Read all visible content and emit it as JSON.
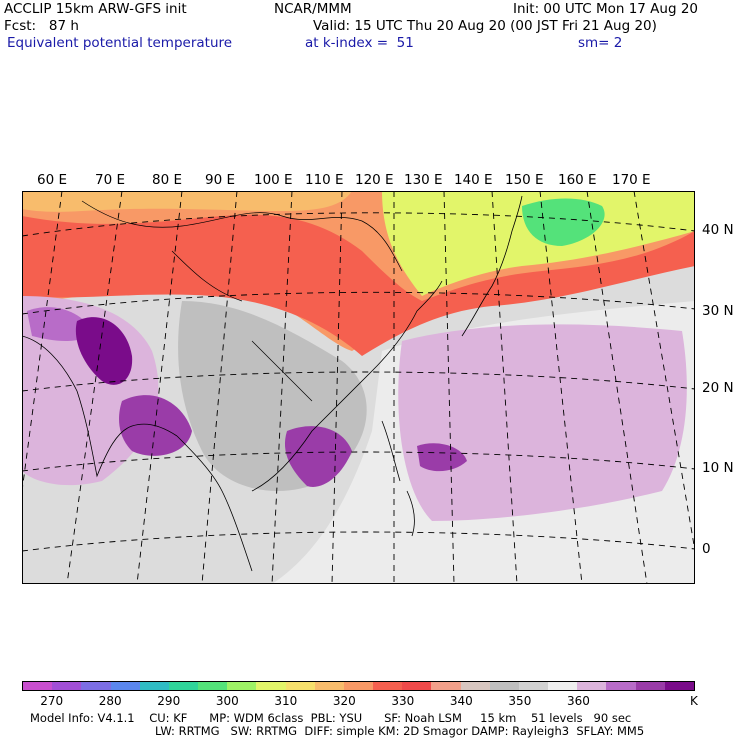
{
  "header": {
    "model": "ACCLIP 15km ARW-GFS init",
    "center": "NCAR/MMM",
    "init": "Init: 00 UTC Mon 17 Aug 20",
    "fcst": "Fcst:   87 h",
    "valid": "Valid: 15 UTC Thu 20 Aug 20 (00 JST Fri 21 Aug 20)",
    "field": "Equivalent potential temperature",
    "level": "at k-index =  51",
    "smooth": "sm= 2"
  },
  "map": {
    "lon_labels": [
      "60 E",
      "70 E",
      "80 E",
      "90 E",
      "100 E",
      "110 E",
      "120 E",
      "130 E",
      "140 E",
      "150 E",
      "160 E",
      "170 E"
    ],
    "lat_labels": [
      "40 N",
      "30 N",
      "20 N",
      "10 N",
      "0"
    ]
  },
  "colorbar": {
    "colors": [
      "#c94fcf",
      "#a24fd6",
      "#7c6ee4",
      "#5b87ee",
      "#2fbcc4",
      "#2fd49a",
      "#54e27a",
      "#9ef266",
      "#e2f56a",
      "#f6e06c",
      "#f8bc6c",
      "#f89966",
      "#f5604f",
      "#f04a4a",
      "#f2a08a",
      "#d7c6c0",
      "#bfbfbf",
      "#d2d2d2",
      "#efefef",
      "#dcb4dc",
      "#b86cc8",
      "#9a3ca8",
      "#7a0c8a"
    ],
    "tick_labels": [
      "270",
      "280",
      "290",
      "300",
      "310",
      "320",
      "330",
      "340",
      "350",
      "360"
    ],
    "unit": "K"
  },
  "footer": {
    "line1": "Model Info: V4.1.1    CU: KF      MP: WDM 6class  PBL: YSU      SF: Noah LSM     15 km    51 levels   90 sec",
    "line2": "LW: RRTMG   SW: RRTMG  DIFF: simple KM: 2D Smagor DAMP: Rayleigh3  SFLAY: MM5"
  }
}
